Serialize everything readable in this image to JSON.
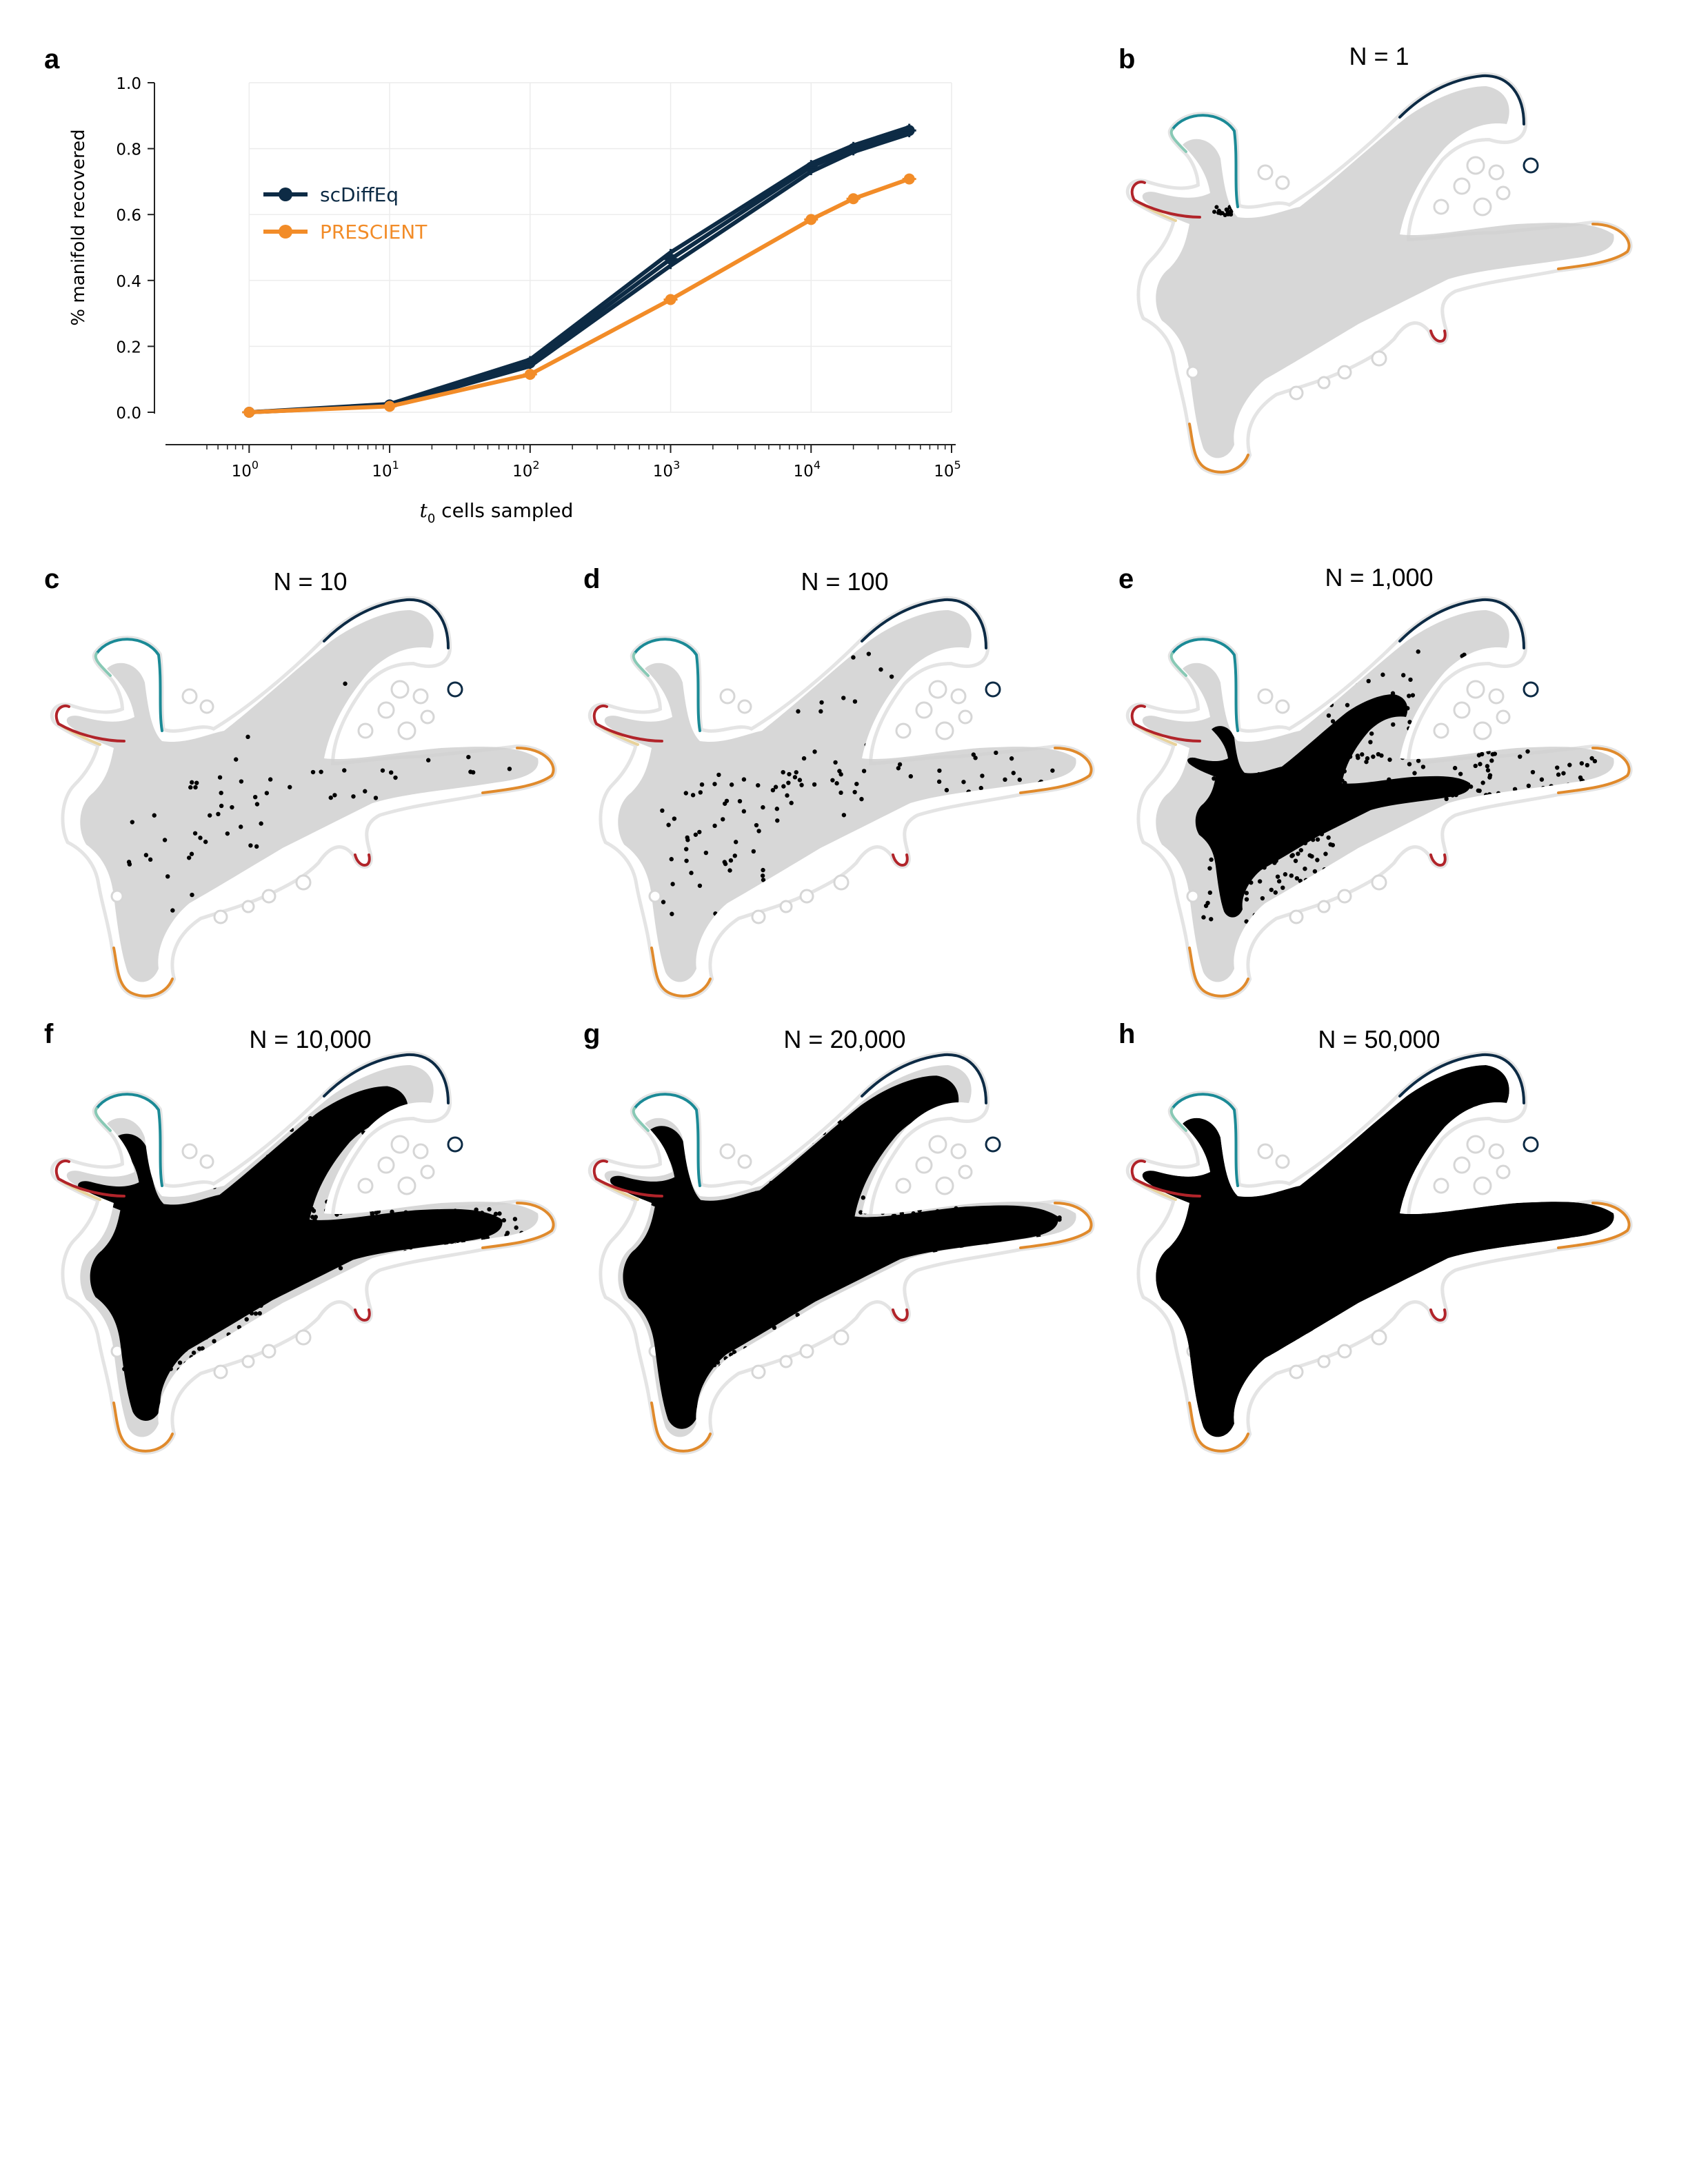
{
  "figure": {
    "panels": [
      {
        "letter": "a"
      },
      {
        "letter": "b",
        "title": "N = 1"
      },
      {
        "letter": "c",
        "title": "N = 10"
      },
      {
        "letter": "d",
        "title": "N = 100"
      },
      {
        "letter": "e",
        "title": "N = 1,000"
      },
      {
        "letter": "f",
        "title": "N = 10,000"
      },
      {
        "letter": "g",
        "title": "N = 20,000"
      },
      {
        "letter": "h",
        "title": "N = 50,000"
      }
    ],
    "umap_fill_fraction": [
      0.0,
      0.02,
      0.12,
      0.45,
      0.75,
      0.8,
      0.85
    ]
  },
  "chart_data": {
    "type": "line",
    "title": "",
    "xlabel_italic": "t",
    "xlabel_sub": "0",
    "xlabel_rest": " cells sampled",
    "ylabel": "% manifold recovered",
    "xscale": "log",
    "xlim": [
      0.5,
      100000
    ],
    "ylim": [
      0.0,
      1.0
    ],
    "yticks": [
      "0.0",
      "0.2",
      "0.4",
      "0.6",
      "0.8",
      "1.0"
    ],
    "xticks": [
      {
        "base": "10",
        "exp": "0",
        "value": 1
      },
      {
        "base": "10",
        "exp": "1",
        "value": 10
      },
      {
        "base": "10",
        "exp": "2",
        "value": 100
      },
      {
        "base": "10",
        "exp": "3",
        "value": 1000
      },
      {
        "base": "10",
        "exp": "4",
        "value": 10000
      },
      {
        "base": "10",
        "exp": "5",
        "value": 100000
      }
    ],
    "grid": true,
    "legend_position": "upper-left",
    "x": [
      1,
      10,
      100,
      1000,
      10000,
      20000,
      50000
    ],
    "series": [
      {
        "name": "scDiffEq",
        "color": "#0d2b45",
        "show_in_legend": true,
        "replicates": [
          [
            0.0,
            0.025,
            0.16,
            0.485,
            0.755,
            0.81,
            0.865
          ],
          [
            0.0,
            0.022,
            0.15,
            0.465,
            0.745,
            0.8,
            0.855
          ],
          [
            0.0,
            0.02,
            0.14,
            0.445,
            0.73,
            0.79,
            0.845
          ]
        ]
      },
      {
        "name": "PRESCIENT",
        "color": "#f28c28",
        "show_in_legend": true,
        "replicates": [
          [
            0.0,
            0.018,
            0.115,
            0.342,
            0.585,
            0.648,
            0.708
          ]
        ]
      }
    ]
  },
  "colors": {
    "scdiffeq": "#0d2b45",
    "prescient": "#f28c28",
    "grid": "#ececec",
    "manifold_bg": "#d0d0d0",
    "sampled": "#000000",
    "outline_teal": "#1b8a96",
    "outline_mint": "#88c9b5",
    "outline_sand": "#e8d29a",
    "outline_red": "#b1242a",
    "outline_orange": "#e08a2c",
    "outline_navy": "#0d2b45"
  }
}
